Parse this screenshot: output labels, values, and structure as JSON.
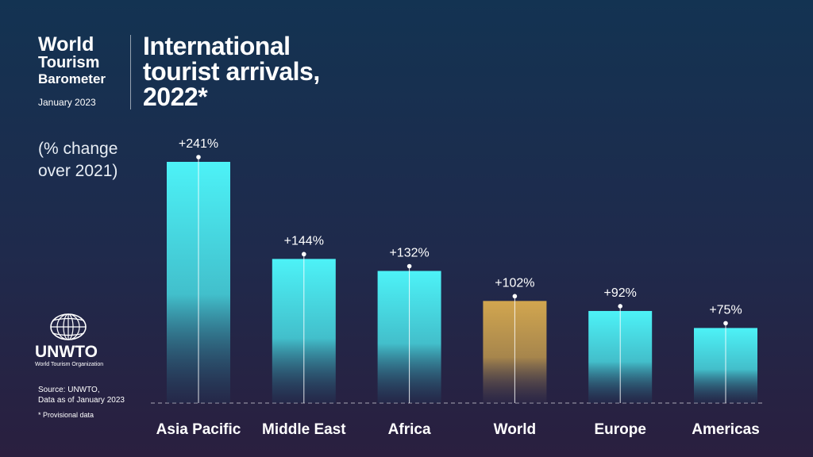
{
  "brand": {
    "line1": "World",
    "line2": "Tourism",
    "line3": "Barometer",
    "date": "January 2023"
  },
  "title": {
    "line1": "International",
    "line2": "tourist arrivals,",
    "line3": "2022*"
  },
  "subtitle": {
    "line1": "(% change",
    "line2": "over 2021)"
  },
  "logo": {
    "icon": "globe-icon",
    "name": "UNWTO",
    "full_name": "World Tourism Organization"
  },
  "source": {
    "line1": "Source: UNWTO,",
    "line2": "Data as of January 2023"
  },
  "note": "*   Provisional data",
  "colors": {
    "bar_top": "#4df2f7",
    "bar_bottom": "#1f3b5c",
    "highlight_top": "#d2a64f",
    "highlight_bottom": "#3a3550"
  },
  "chart_data": {
    "type": "bar",
    "categories": [
      "Asia Pacific",
      "Middle East",
      "Africa",
      "World",
      "Europe",
      "Americas"
    ],
    "values": [
      241,
      144,
      132,
      102,
      92,
      75
    ],
    "value_labels": [
      "+241%",
      "+144%",
      "+132%",
      "+102%",
      "+92%",
      "+75%"
    ],
    "highlight": "World",
    "ylim": [
      0,
      241
    ],
    "grid": false,
    "title": "International tourist arrivals, 2022*",
    "ylabel": "(% change over 2021)"
  }
}
